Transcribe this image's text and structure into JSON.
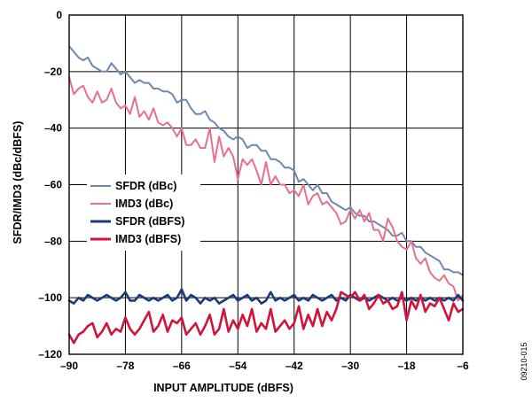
{
  "figure_id": "09210-015",
  "chart_data": {
    "type": "line",
    "title": "",
    "xlabel": "INPUT AMPLITUDE (dBFS)",
    "ylabel": "SFDR/IMD3 (dBc/dBFS)",
    "xlim": [
      -90,
      -6
    ],
    "ylim": [
      -120,
      0
    ],
    "xticks": [
      -90,
      -78,
      -66,
      -54,
      -42,
      -30,
      -18,
      -6
    ],
    "yticks": [
      0,
      -20,
      -40,
      -60,
      -80,
      -100,
      -120
    ],
    "xtick_labels": [
      "–90",
      "–78",
      "–66",
      "–54",
      "–42",
      "–30",
      "–18",
      "–6"
    ],
    "ytick_labels": [
      "0",
      "–20",
      "–40",
      "–60",
      "–80",
      "–100",
      "–120"
    ],
    "grid": true,
    "legend_position": "middle-left",
    "series": [
      {
        "name": "SFDR (dBc)",
        "color": "#6f88b0",
        "x": [
          -90,
          -89,
          -88,
          -87,
          -86,
          -85,
          -84,
          -83,
          -82,
          -81,
          -80,
          -79,
          -78,
          -77,
          -76,
          -75,
          -74,
          -73,
          -72,
          -71,
          -70,
          -69,
          -68,
          -67,
          -66,
          -65,
          -64,
          -63,
          -62,
          -61,
          -60,
          -59,
          -58,
          -57,
          -56,
          -55,
          -54,
          -53,
          -52,
          -51,
          -50,
          -49,
          -48,
          -47,
          -46,
          -45,
          -44,
          -43,
          -42,
          -41,
          -40,
          -39,
          -38,
          -37,
          -36,
          -35,
          -34,
          -33,
          -32,
          -31,
          -30,
          -29,
          -28,
          -27,
          -26,
          -25,
          -24,
          -23,
          -22,
          -21,
          -20,
          -19,
          -18,
          -17,
          -16,
          -15,
          -14,
          -13,
          -12,
          -11,
          -10,
          -9,
          -8,
          -7,
          -6
        ],
        "y": [
          -11,
          -13,
          -15,
          -16,
          -15,
          -18,
          -19,
          -20,
          -20,
          -17,
          -19,
          -21,
          -20,
          -22,
          -24,
          -23,
          -24,
          -24,
          -26,
          -26,
          -27,
          -27,
          -28,
          -31,
          -30,
          -30,
          -33,
          -35,
          -35,
          -34,
          -37,
          -38,
          -40,
          -41,
          -43,
          -44,
          -43,
          -44,
          -47,
          -46,
          -46,
          -48,
          -48,
          -51,
          -51,
          -52,
          -54,
          -54,
          -55,
          -59,
          -58,
          -60,
          -62,
          -60,
          -63,
          -63,
          -66,
          -67,
          -68,
          -69,
          -68,
          -70,
          -71,
          -71,
          -73,
          -73,
          -74,
          -75,
          -76,
          -78,
          -78,
          -77,
          -80,
          -80,
          -82,
          -82,
          -84,
          -85,
          -86,
          -87,
          -90,
          -90,
          -91,
          -91,
          -92
        ]
      },
      {
        "name": "IMD3 (dBc)",
        "color": "#e8708c",
        "x": [
          -90,
          -89,
          -88,
          -87,
          -86,
          -85,
          -84,
          -83,
          -82,
          -81,
          -80,
          -79,
          -78,
          -77,
          -76,
          -75,
          -74,
          -73,
          -72,
          -71,
          -70,
          -69,
          -68,
          -67,
          -66,
          -65,
          -64,
          -63,
          -62,
          -61,
          -60,
          -59,
          -58,
          -57,
          -56,
          -55,
          -54,
          -53,
          -52,
          -51,
          -50,
          -49,
          -48,
          -47,
          -46,
          -45,
          -44,
          -43,
          -42,
          -41,
          -40,
          -39,
          -38,
          -37,
          -36,
          -35,
          -34,
          -33,
          -32,
          -31,
          -30,
          -29,
          -28,
          -27,
          -26,
          -25,
          -24,
          -23,
          -22,
          -21,
          -20,
          -19,
          -18,
          -17,
          -16,
          -15,
          -14,
          -13,
          -12,
          -11,
          -10,
          -9,
          -8,
          -7,
          -6
        ],
        "y": [
          -22,
          -28,
          -26,
          -25,
          -29,
          -31,
          -27,
          -31,
          -30,
          -26,
          -31,
          -33,
          -32,
          -35,
          -29,
          -36,
          -34,
          -37,
          -33,
          -38,
          -39,
          -38,
          -40,
          -43,
          -40,
          -46,
          -46,
          -44,
          -47,
          -47,
          -40,
          -52,
          -43,
          -50,
          -47,
          -50,
          -58,
          -51,
          -53,
          -51,
          -55,
          -60,
          -52,
          -60,
          -57,
          -60,
          -60,
          -63,
          -62,
          -64,
          -60,
          -67,
          -64,
          -63,
          -67,
          -66,
          -68,
          -70,
          -74,
          -73,
          -69,
          -72,
          -69,
          -73,
          -70,
          -76,
          -76,
          -80,
          -72,
          -75,
          -80,
          -82,
          -83,
          -80,
          -86,
          -88,
          -86,
          -91,
          -93,
          -94,
          -92,
          -95,
          -96,
          -101,
          -99
        ]
      },
      {
        "name": "SFDR (dBFS)",
        "color": "#1a3a78",
        "x": [
          -90,
          -89,
          -88,
          -87,
          -86,
          -85,
          -84,
          -83,
          -82,
          -81,
          -80,
          -79,
          -78,
          -77,
          -76,
          -75,
          -74,
          -73,
          -72,
          -71,
          -70,
          -69,
          -68,
          -67,
          -66,
          -65,
          -64,
          -63,
          -62,
          -61,
          -60,
          -59,
          -58,
          -57,
          -56,
          -55,
          -54,
          -53,
          -52,
          -51,
          -50,
          -49,
          -48,
          -47,
          -46,
          -45,
          -44,
          -43,
          -42,
          -41,
          -40,
          -39,
          -38,
          -37,
          -36,
          -35,
          -34,
          -33,
          -32,
          -31,
          -30,
          -29,
          -28,
          -27,
          -26,
          -25,
          -24,
          -23,
          -22,
          -21,
          -20,
          -19,
          -18,
          -17,
          -16,
          -15,
          -14,
          -13,
          -12,
          -11,
          -10,
          -9,
          -8,
          -7,
          -6
        ],
        "y": [
          -101,
          -102,
          -100,
          -101,
          -99,
          -100,
          -101,
          -100,
          -99,
          -100,
          -101,
          -100,
          -98,
          -101,
          -101,
          -99,
          -100,
          -101,
          -100,
          -101,
          -100,
          -99,
          -101,
          -100,
          -97,
          -101,
          -99,
          -100,
          -102,
          -100,
          -101,
          -100,
          -102,
          -101,
          -100,
          -99,
          -101,
          -100,
          -99,
          -101,
          -100,
          -102,
          -101,
          -98,
          -101,
          -100,
          -101,
          -100,
          -99,
          -101,
          -100,
          -101,
          -99,
          -100,
          -101,
          -100,
          -99,
          -101,
          -100,
          -101,
          -99,
          -100,
          -101,
          -100,
          -101,
          -100,
          -99,
          -100,
          -101,
          -100,
          -101,
          -100,
          -101,
          -100,
          -101,
          -100,
          -101,
          -100,
          -101,
          -100,
          -101,
          -100,
          -101,
          -99,
          -101
        ]
      },
      {
        "name": "IMD3 (dBFS)",
        "color": "#d0143c",
        "x": [
          -90,
          -89,
          -88,
          -87,
          -86,
          -85,
          -84,
          -83,
          -82,
          -81,
          -80,
          -79,
          -78,
          -77,
          -76,
          -75,
          -74,
          -73,
          -72,
          -71,
          -70,
          -69,
          -68,
          -67,
          -66,
          -65,
          -64,
          -63,
          -62,
          -61,
          -60,
          -59,
          -58,
          -57,
          -56,
          -55,
          -54,
          -53,
          -52,
          -51,
          -50,
          -49,
          -48,
          -47,
          -46,
          -45,
          -44,
          -43,
          -42,
          -41,
          -40,
          -39,
          -38,
          -37,
          -36,
          -35,
          -34,
          -33,
          -32,
          -31,
          -30,
          -29,
          -28,
          -27,
          -26,
          -25,
          -24,
          -23,
          -22,
          -21,
          -20,
          -19,
          -18,
          -17,
          -16,
          -15,
          -14,
          -13,
          -12,
          -11,
          -10,
          -9,
          -8,
          -7,
          -6
        ],
        "y": [
          -113,
          -116,
          -113,
          -112,
          -110,
          -109,
          -114,
          -112,
          -109,
          -113,
          -111,
          -112,
          -107,
          -111,
          -113,
          -111,
          -108,
          -105,
          -112,
          -110,
          -106,
          -112,
          -108,
          -109,
          -107,
          -113,
          -111,
          -109,
          -113,
          -110,
          -106,
          -113,
          -111,
          -104,
          -112,
          -108,
          -111,
          -106,
          -110,
          -104,
          -112,
          -109,
          -111,
          -104,
          -112,
          -110,
          -108,
          -111,
          -109,
          -103,
          -111,
          -106,
          -110,
          -104,
          -110,
          -105,
          -108,
          -104,
          -98,
          -99,
          -100,
          -98,
          -101,
          -99,
          -104,
          -102,
          -99,
          -102,
          -101,
          -104,
          -103,
          -98,
          -108,
          -101,
          -104,
          -99,
          -105,
          -102,
          -103,
          -100,
          -104,
          -108,
          -102,
          -105,
          -104
        ]
      }
    ]
  }
}
